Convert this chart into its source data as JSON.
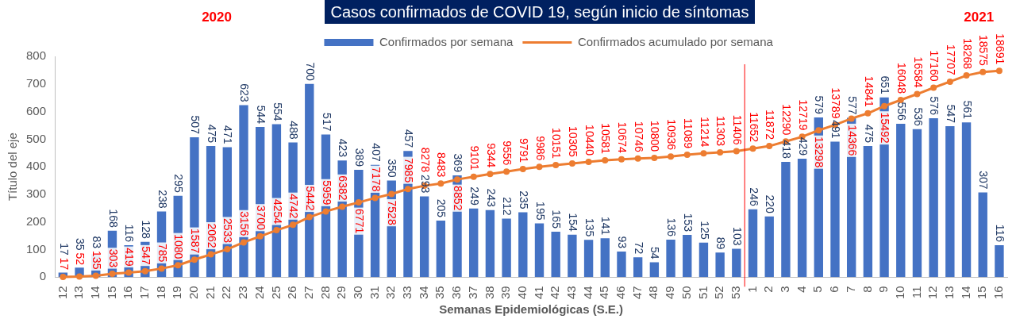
{
  "chart_data": {
    "type": "bar",
    "title": "Casos confirmados de COVID 19, según inicio de síntomas",
    "xlabel": "Semanas Epidemiológicas (S.E.)",
    "ylabel": "Título del eje",
    "annotations": [
      "2020",
      "2021"
    ],
    "categories": [
      "12",
      "13",
      "14",
      "15",
      "16",
      "17",
      "18",
      "19",
      "20",
      "21",
      "22",
      "23",
      "24",
      "25",
      "26",
      "27",
      "28",
      "29",
      "30",
      "31",
      "32",
      "33",
      "34",
      "35",
      "36",
      "37",
      "38",
      "39",
      "40",
      "41",
      "42",
      "43",
      "44",
      "45",
      "46",
      "47",
      "48",
      "49",
      "50",
      "51",
      "52",
      "53",
      "1",
      "2",
      "3",
      "4",
      "5",
      "6",
      "7",
      "8",
      "9",
      "10",
      "11",
      "12",
      "13",
      "14",
      "15",
      "16"
    ],
    "series": [
      {
        "name": "Confirmados por semana",
        "color": "#4472c4",
        "values": [
          17,
          35,
          83,
          168,
          116,
          128,
          238,
          295,
          507,
          475,
          471,
          623,
          544,
          554,
          488,
          700,
          517,
          423,
          389,
          407,
          350,
          457,
          293,
          205,
          369,
          249,
          243,
          212,
          235,
          195,
          165,
          154,
          135,
          141,
          93,
          72,
          54,
          136,
          153,
          125,
          89,
          103,
          246,
          220,
          418,
          429,
          579,
          491,
          577,
          475,
          651,
          556,
          536,
          576,
          547,
          561,
          307,
          116
        ]
      },
      {
        "name": "Confirmados acumulado por semana",
        "type": "line",
        "axis": "y2",
        "color": "#ed7d31",
        "values": [
          17,
          52,
          135,
          303,
          419,
          547,
          785,
          1080,
          1587,
          2062,
          2533,
          3156,
          3700,
          4254,
          4742,
          5442,
          5959,
          6382,
          6771,
          7178,
          7528,
          7985,
          8278,
          8483,
          8852,
          9101,
          9344,
          9556,
          9791,
          9986,
          10151,
          10305,
          10440,
          10581,
          10674,
          10746,
          10800,
          10936,
          11089,
          11214,
          11303,
          11406,
          11652,
          11872,
          12290,
          12719,
          13298,
          13789,
          14366,
          14841,
          15492,
          16048,
          16584,
          17160,
          17707,
          18268,
          18575,
          18691
        ]
      }
    ],
    "ylim": [
      0,
      800
    ],
    "yticks": [
      0,
      100,
      200,
      300,
      400,
      500,
      600,
      700,
      800
    ],
    "y2lim": [
      0,
      20000
    ],
    "grid": false,
    "legend": "top",
    "marker": "circle",
    "line_style": "solid",
    "data_labels": true,
    "ref_lines": [
      {
        "axis": "x",
        "value": "1",
        "color": "#ff0000"
      }
    ]
  }
}
